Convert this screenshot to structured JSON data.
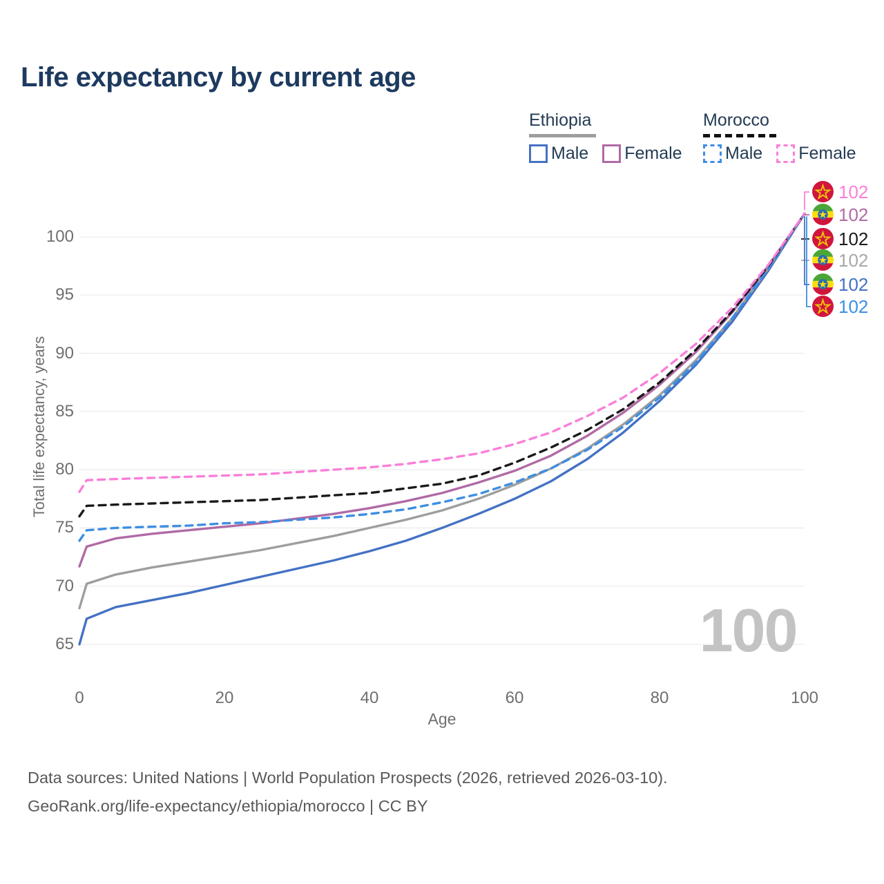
{
  "header": {
    "title": "Life expectancy by current age"
  },
  "legend": {
    "groups": [
      {
        "name": "Ethiopia",
        "line_style": "solid",
        "underline_color": "#9e9e9e",
        "items": [
          {
            "label": "Male",
            "color": "#4472c4"
          },
          {
            "label": "Female",
            "color": "#b06aa5"
          }
        ]
      },
      {
        "name": "Morocco",
        "line_style": "dashed",
        "underline_color": "#111111",
        "items": [
          {
            "label": "Male",
            "color": "#3d8ee2"
          },
          {
            "label": "Female",
            "color": "#fa7fd9"
          }
        ]
      }
    ]
  },
  "chart_data": {
    "type": "line",
    "title": "Life expectancy by current age",
    "xlabel": "Age",
    "ylabel": "Total life expectancy, years",
    "xlim": [
      0,
      100
    ],
    "ylim": [
      65,
      100
    ],
    "xticks": [
      0,
      20,
      40,
      60,
      80,
      100
    ],
    "yticks": [
      65,
      70,
      75,
      80,
      85,
      90,
      95,
      100
    ],
    "grid": "horizontal",
    "watermark": "100",
    "ages": [
      0,
      1,
      5,
      10,
      15,
      20,
      25,
      30,
      35,
      40,
      45,
      50,
      55,
      60,
      65,
      70,
      75,
      80,
      85,
      90,
      95,
      100
    ],
    "series": [
      {
        "name": "Ethiopia Male",
        "country": "Ethiopia",
        "sex": "Male",
        "color": "#4472c4",
        "dash": false,
        "values": [
          65.0,
          67.2,
          68.2,
          68.8,
          69.4,
          70.1,
          70.8,
          71.5,
          72.2,
          73.0,
          73.9,
          75.0,
          76.2,
          77.5,
          79.0,
          80.9,
          83.2,
          85.9,
          89.0,
          92.7,
          97.1,
          102
        ]
      },
      {
        "name": "Ethiopia All",
        "country": "Ethiopia",
        "sex": "All",
        "color": "#9e9e9e",
        "dash": false,
        "values": [
          68.1,
          70.2,
          71.0,
          71.6,
          72.1,
          72.6,
          73.1,
          73.7,
          74.3,
          75.0,
          75.7,
          76.5,
          77.5,
          78.7,
          80.1,
          81.8,
          83.9,
          86.4,
          89.4,
          93.0,
          97.3,
          102
        ]
      },
      {
        "name": "Ethiopia Female",
        "country": "Ethiopia",
        "sex": "Female",
        "color": "#b06aa5",
        "dash": false,
        "values": [
          71.7,
          73.4,
          74.1,
          74.5,
          74.8,
          75.1,
          75.4,
          75.8,
          76.2,
          76.7,
          77.3,
          78.0,
          78.9,
          79.9,
          81.2,
          82.9,
          84.9,
          87.3,
          90.1,
          93.5,
          97.5,
          102
        ]
      },
      {
        "name": "Morocco Male",
        "country": "Morocco",
        "sex": "Male",
        "color": "#3d8ee2",
        "dash": true,
        "values": [
          73.9,
          74.8,
          75.0,
          75.1,
          75.2,
          75.4,
          75.5,
          75.7,
          75.9,
          76.2,
          76.6,
          77.2,
          77.9,
          78.9,
          80.1,
          81.7,
          83.7,
          86.2,
          89.2,
          93.0,
          97.3,
          102
        ]
      },
      {
        "name": "Morocco All",
        "country": "Morocco",
        "sex": "All",
        "color": "#1a1a1a",
        "dash": true,
        "values": [
          76.0,
          76.9,
          77.0,
          77.1,
          77.2,
          77.3,
          77.4,
          77.6,
          77.8,
          78.0,
          78.4,
          78.8,
          79.5,
          80.6,
          81.9,
          83.4,
          85.2,
          87.5,
          90.3,
          93.6,
          97.5,
          102
        ]
      },
      {
        "name": "Morocco Female",
        "country": "Morocco",
        "sex": "Female",
        "color": "#fa7fd9",
        "dash": true,
        "values": [
          78.1,
          79.1,
          79.2,
          79.3,
          79.4,
          79.5,
          79.6,
          79.8,
          80.0,
          80.2,
          80.5,
          80.9,
          81.4,
          82.2,
          83.2,
          84.6,
          86.2,
          88.3,
          90.8,
          93.9,
          97.6,
          102
        ]
      }
    ],
    "end_labels": [
      {
        "flag": "morocco",
        "series": "Morocco Female",
        "value": "102",
        "color": "#fa7fd9"
      },
      {
        "flag": "ethiopia",
        "series": "Ethiopia Female",
        "value": "102",
        "color": "#b06aa5"
      },
      {
        "flag": "morocco",
        "series": "Morocco All",
        "value": "102",
        "color": "#1a1a1a"
      },
      {
        "flag": "ethiopia",
        "series": "Ethiopia All",
        "value": "102",
        "color": "#a8a8a8"
      },
      {
        "flag": "ethiopia",
        "series": "Ethiopia Male",
        "value": "102",
        "color": "#4472c4"
      },
      {
        "flag": "morocco",
        "series": "Morocco Male",
        "value": "102",
        "color": "#3d8ee2"
      }
    ]
  },
  "footer": {
    "line1": "Data sources: United Nations | World Population Prospects (2026, retrieved 2026-03-10).",
    "line2": "GeoRank.org/life-expectancy/ethiopia/morocco | CC BY"
  }
}
